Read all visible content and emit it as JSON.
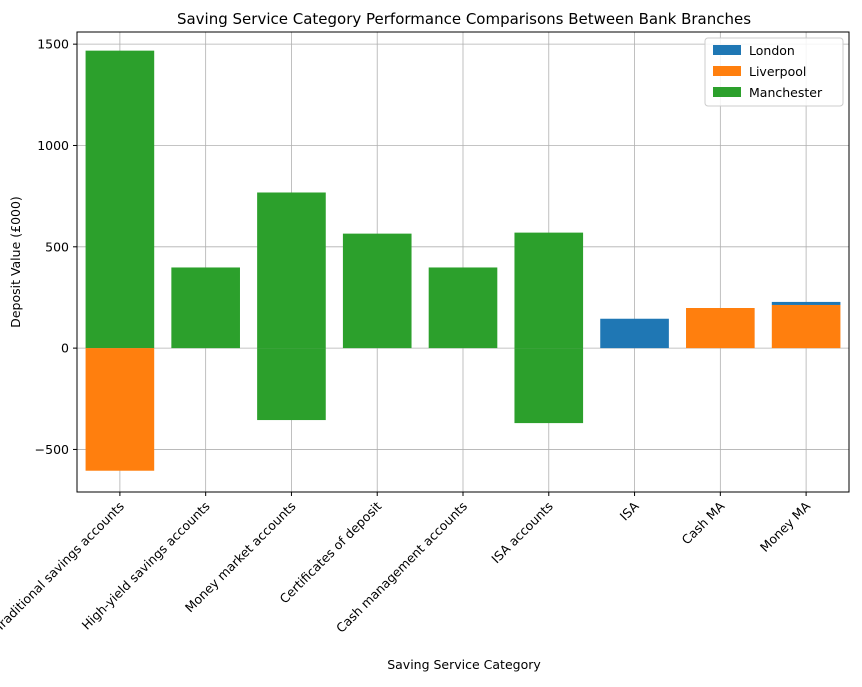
{
  "chart_data": {
    "type": "bar",
    "title": "Saving Service Category Performance Comparisons Between Bank Branches",
    "xlabel": "Saving Service Category",
    "ylabel": "Deposit Value (£000)",
    "categories": [
      "Traditional savings accounts",
      "High-yield savings accounts",
      "Money market accounts",
      "Certificates of deposit",
      "Cash management accounts",
      "ISA accounts",
      "ISA",
      "Cash MA",
      "Money MA"
    ],
    "ylim": [
      -710,
      1560
    ],
    "yticks": [
      -500,
      0,
      500,
      1000,
      1500
    ],
    "ytick_labels": [
      "−500",
      "0",
      "500",
      "1000",
      "1500"
    ],
    "grid": true,
    "legend_position": "top-right",
    "bars": [
      {
        "category_index": 0,
        "series": "Manchester",
        "bottom": 0,
        "top": 1468
      },
      {
        "category_index": 0,
        "series": "Liverpool",
        "bottom": -605,
        "top": 0
      },
      {
        "category_index": 1,
        "series": "Manchester",
        "bottom": 0,
        "top": 398
      },
      {
        "category_index": 2,
        "series": "Manchester",
        "bottom": 0,
        "top": 768
      },
      {
        "category_index": 2,
        "series": "Manchester",
        "bottom": -355,
        "top": 0
      },
      {
        "category_index": 3,
        "series": "Manchester",
        "bottom": 0,
        "top": 565
      },
      {
        "category_index": 4,
        "series": "Manchester",
        "bottom": 0,
        "top": 398
      },
      {
        "category_index": 5,
        "series": "Manchester",
        "bottom": 0,
        "top": 570
      },
      {
        "category_index": 5,
        "series": "Manchester",
        "bottom": -370,
        "top": 0
      },
      {
        "category_index": 6,
        "series": "London",
        "bottom": 0,
        "top": 145
      },
      {
        "category_index": 7,
        "series": "Liverpool",
        "bottom": 0,
        "top": 198
      },
      {
        "category_index": 8,
        "series": "Liverpool",
        "bottom": 0,
        "top": 213
      },
      {
        "category_index": 8,
        "series": "London",
        "bottom": 213,
        "top": 228
      }
    ],
    "series": [
      {
        "name": "London",
        "color": "#1f77b4"
      },
      {
        "name": "Liverpool",
        "color": "#ff7f0e"
      },
      {
        "name": "Manchester",
        "color": "#2ca02c"
      }
    ]
  }
}
